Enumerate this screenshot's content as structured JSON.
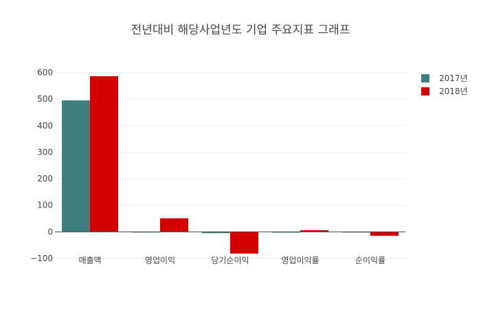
{
  "colors": {
    "series_2017": "#3f7f7f",
    "series_2018": "#d40000",
    "grid": "#eeeeee",
    "zero_line": "#444444",
    "text": "#444444"
  },
  "chart_data": {
    "type": "bar",
    "title": "전년대비 해당사업년도 기업 주요지표 그래프",
    "xlabel": "",
    "ylabel": "",
    "categories": [
      "매출액",
      "영업이익",
      "당기순이익",
      "영업이익률",
      "순이익률"
    ],
    "series": [
      {
        "name": "2017년",
        "values": [
          495,
          -2,
          -5,
          -3,
          -2
        ]
      },
      {
        "name": "2018년",
        "values": [
          586,
          51,
          -82,
          6,
          -15
        ]
      }
    ],
    "ylim": [
      -100,
      640
    ],
    "yticks": [
      -100,
      0,
      100,
      200,
      300,
      400,
      500,
      600
    ],
    "ytick_labels": [
      "−100",
      "0",
      "100",
      "200",
      "300",
      "400",
      "500",
      "600"
    ],
    "grid": true,
    "legend": "top-right"
  }
}
